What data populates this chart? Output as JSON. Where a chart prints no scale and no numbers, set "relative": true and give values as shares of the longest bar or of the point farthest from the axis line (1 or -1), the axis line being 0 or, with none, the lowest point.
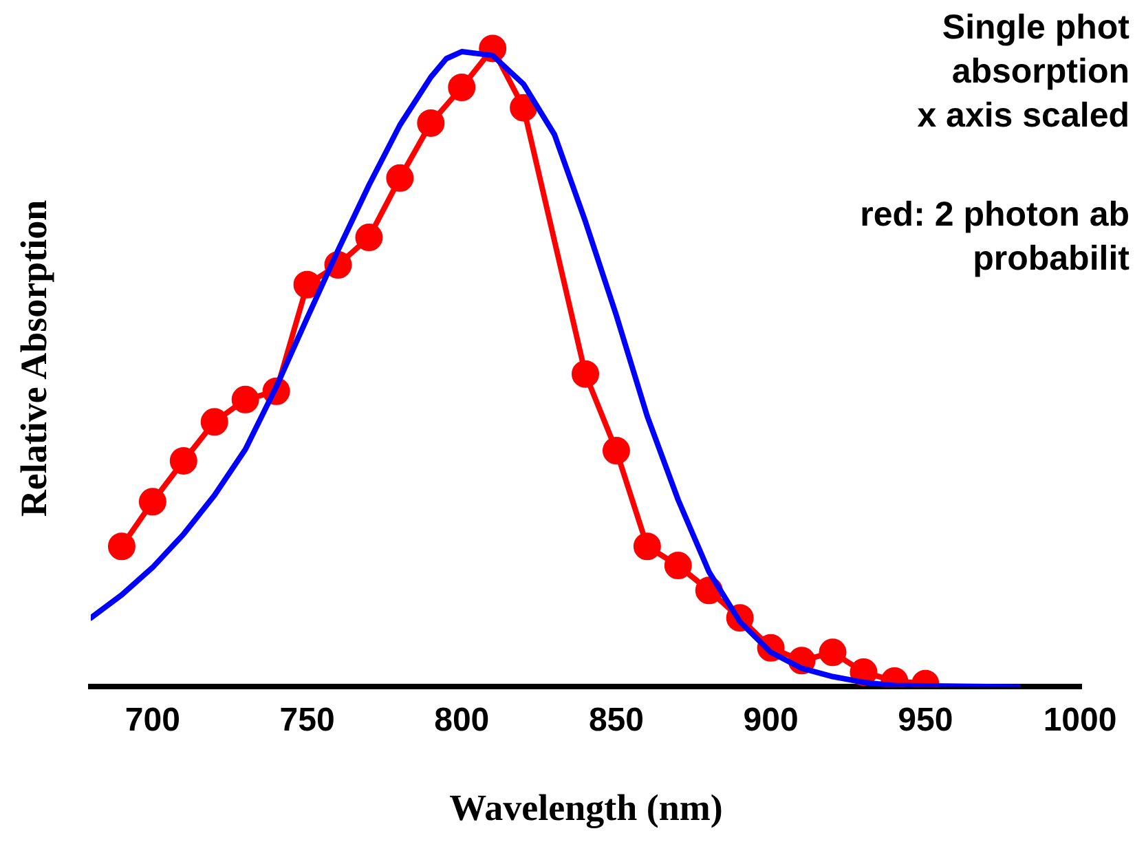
{
  "chart_data": {
    "type": "line",
    "relative": true,
    "xlabel": "Wavelength (nm)",
    "ylabel": "Relative Absorption",
    "xlim": [
      680,
      1000
    ],
    "xticks": [
      700,
      750,
      800,
      850,
      900,
      950,
      1000
    ],
    "annotations": [
      "Single phot",
      "absorption",
      "x axis scaled",
      "red: 2 photon ab",
      "probabilit"
    ],
    "series": [
      {
        "color": "#0000ff",
        "marker": "none",
        "x": [
          680,
          690,
          700,
          710,
          720,
          730,
          740,
          750,
          760,
          770,
          780,
          790,
          795,
          800,
          810,
          820,
          830,
          840,
          850,
          860,
          870,
          880,
          890,
          900,
          910,
          920,
          930,
          940,
          960,
          980
        ],
        "values": [
          0.108,
          0.144,
          0.187,
          0.239,
          0.3,
          0.372,
          0.47,
          0.578,
          0.684,
          0.786,
          0.88,
          0.955,
          0.984,
          0.995,
          0.989,
          0.944,
          0.865,
          0.729,
          0.582,
          0.424,
          0.293,
          0.18,
          0.102,
          0.054,
          0.029,
          0.016,
          0.007,
          0.002,
          0.001,
          0
        ]
      },
      {
        "color": "#ff0000",
        "marker": "circle",
        "x": [
          690,
          700,
          710,
          720,
          730,
          740,
          750,
          760,
          770,
          780,
          790,
          800,
          810,
          820,
          840,
          850,
          860,
          870,
          880,
          890,
          900,
          910,
          920,
          930,
          940,
          950
        ],
        "values": [
          0.22,
          0.29,
          0.354,
          0.415,
          0.45,
          0.463,
          0.63,
          0.661,
          0.704,
          0.797,
          0.883,
          0.939,
          1,
          0.907,
          0.49,
          0.37,
          0.22,
          0.19,
          0.151,
          0.108,
          0.061,
          0.041,
          0.054,
          0.023,
          0.009,
          0.005
        ]
      }
    ]
  }
}
